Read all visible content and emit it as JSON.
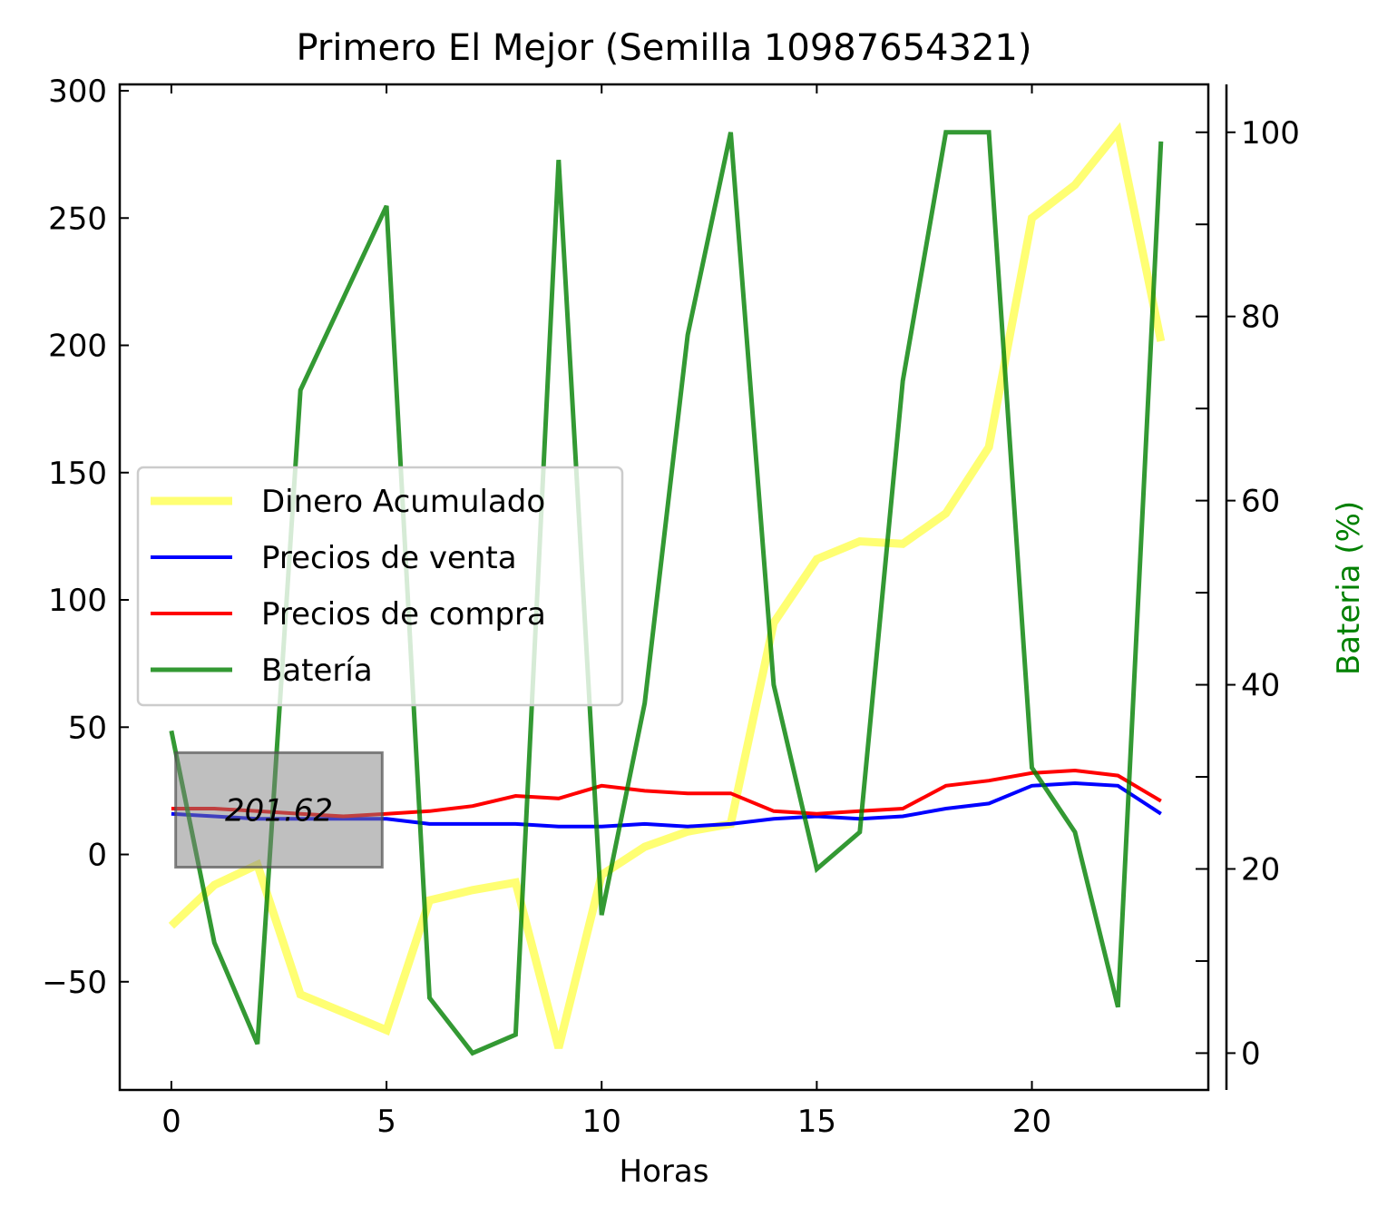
{
  "chart_data": {
    "type": "line",
    "title": "Primero El Mejor (Semilla 10987654321)",
    "xlabel": "Horas",
    "ylabel": "",
    "y2label": "Bateria (%)",
    "xlim": [
      -1.2,
      24.1
    ],
    "ylim": [
      -92.5,
      302.5
    ],
    "y2lim": [
      -4,
      105.2
    ],
    "xticks": [
      0,
      5,
      10,
      15,
      20
    ],
    "yticks": [
      -50,
      0,
      50,
      100,
      150,
      200,
      250,
      300
    ],
    "y2ticks": [
      0,
      20,
      40,
      60,
      80,
      100
    ],
    "x": [
      0,
      1,
      2,
      3,
      4,
      5,
      6,
      7,
      8,
      9,
      10,
      11,
      12,
      13,
      14,
      15,
      16,
      17,
      18,
      19,
      20,
      21,
      22,
      23
    ],
    "series": [
      {
        "name": "Dinero Acumulado",
        "axis": "left",
        "color": "#ffff00",
        "values": [
          -28,
          -12,
          -4,
          -55,
          -62,
          -69,
          -18,
          -14,
          -11,
          -76,
          -8,
          3,
          9,
          12,
          91,
          116,
          123,
          122,
          134,
          160,
          250,
          263,
          284,
          201.62
        ]
      },
      {
        "name": "Precios de venta",
        "axis": "left",
        "color": "#0000ff",
        "values": [
          16,
          15,
          14,
          14,
          14,
          14,
          12,
          12,
          12,
          11,
          11,
          12,
          11,
          12,
          14,
          15,
          14,
          15,
          18,
          20,
          27,
          28,
          27,
          16
        ]
      },
      {
        "name": "Precios de compra",
        "axis": "left",
        "color": "#ff0000",
        "values": [
          18,
          18,
          17,
          16,
          15,
          16,
          17,
          19,
          23,
          22,
          27,
          25,
          24,
          24,
          17,
          16,
          17,
          18,
          27,
          29,
          32,
          33,
          31,
          21
        ]
      },
      {
        "name": "Batería",
        "axis": "right",
        "color": "#008000",
        "values": [
          35,
          12,
          1,
          72,
          82,
          92,
          6,
          0,
          2,
          97,
          15,
          38,
          78,
          100,
          40,
          20,
          24,
          73,
          100,
          100,
          31,
          24,
          5,
          99
        ]
      }
    ],
    "annotation": {
      "text": "201.62",
      "x": 0.1,
      "y1": -5,
      "x2": 4.9,
      "y2": 40
    },
    "legend": "center-left",
    "grid": false
  }
}
